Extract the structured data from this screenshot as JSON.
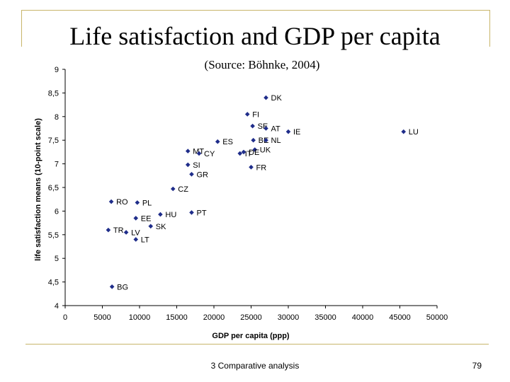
{
  "slide": {
    "title": "Life satisfaction and GDP per capita",
    "subtitle": "(Source: Böhnke, 2004)",
    "footer": "3 Comparative analysis",
    "page_number": "79",
    "accent_color": "#c8b56a"
  },
  "chart_data": {
    "type": "scatter",
    "title": "",
    "xlabel": "GDP per capita (ppp)",
    "ylabel": "life satisfaction means (10-point scale)",
    "xlim": [
      0,
      50000
    ],
    "ylim": [
      4,
      9
    ],
    "x_ticks": [
      0,
      5000,
      10000,
      15000,
      20000,
      25000,
      30000,
      35000,
      40000,
      45000,
      50000
    ],
    "y_ticks": [
      "4",
      "4,5",
      "5",
      "5,5",
      "6",
      "6,5",
      "7",
      "7,5",
      "8",
      "8,5",
      "9"
    ],
    "grid": false,
    "legend": "none",
    "marker_color": "#1f2d8a",
    "points": [
      {
        "label": "DK",
        "x": 27000,
        "y": 8.4
      },
      {
        "label": "FI",
        "x": 24500,
        "y": 8.05
      },
      {
        "label": "SE",
        "x": 25200,
        "y": 7.8
      },
      {
        "label": "AT",
        "x": 27000,
        "y": 7.75
      },
      {
        "label": "IE",
        "x": 30000,
        "y": 7.68
      },
      {
        "label": "LU",
        "x": 45500,
        "y": 7.68
      },
      {
        "label": "BE",
        "x": 25300,
        "y": 7.5
      },
      {
        "label": "NL",
        "x": 27000,
        "y": 7.5
      },
      {
        "label": "ES",
        "x": 20500,
        "y": 7.47
      },
      {
        "label": "UK",
        "x": 25500,
        "y": 7.3
      },
      {
        "label": "MT",
        "x": 16500,
        "y": 7.27
      },
      {
        "label": "CY",
        "x": 18000,
        "y": 7.22
      },
      {
        "label": "IT",
        "x": 23500,
        "y": 7.22
      },
      {
        "label": "DE",
        "x": 24000,
        "y": 7.25
      },
      {
        "label": "SI",
        "x": 16500,
        "y": 6.98
      },
      {
        "label": "FR",
        "x": 25000,
        "y": 6.93
      },
      {
        "label": "GR",
        "x": 17000,
        "y": 6.78
      },
      {
        "label": "CZ",
        "x": 14500,
        "y": 6.47
      },
      {
        "label": "RO",
        "x": 6200,
        "y": 6.2
      },
      {
        "label": "PL",
        "x": 9700,
        "y": 6.18
      },
      {
        "label": "PT",
        "x": 17000,
        "y": 5.97
      },
      {
        "label": "HU",
        "x": 12800,
        "y": 5.93
      },
      {
        "label": "EE",
        "x": 9500,
        "y": 5.85
      },
      {
        "label": "SK",
        "x": 11500,
        "y": 5.68
      },
      {
        "label": "TR",
        "x": 5800,
        "y": 5.6
      },
      {
        "label": "LV",
        "x": 8200,
        "y": 5.55
      },
      {
        "label": "LT",
        "x": 9500,
        "y": 5.4
      },
      {
        "label": "BG",
        "x": 6300,
        "y": 4.4
      }
    ]
  }
}
